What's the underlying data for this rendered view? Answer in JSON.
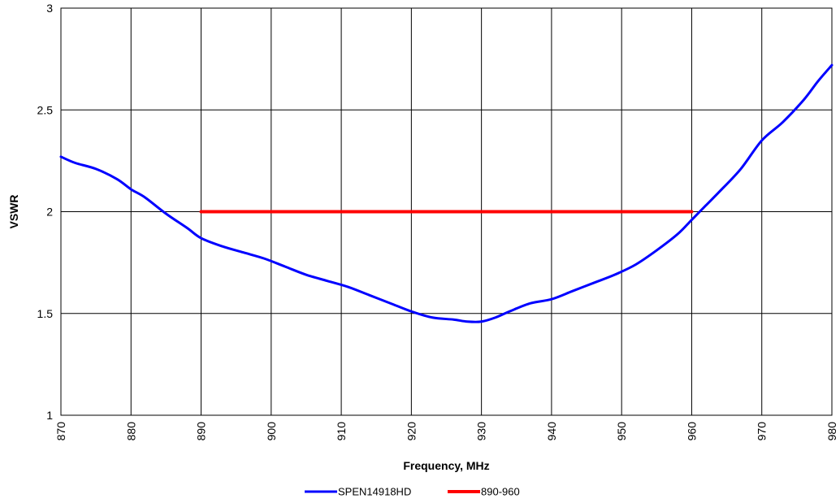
{
  "chart_data": {
    "type": "line",
    "title": "",
    "xlabel": "Frequency, MHz",
    "ylabel": "VSWR",
    "xlim": [
      870,
      980
    ],
    "ylim": [
      1,
      3
    ],
    "x_ticks": [
      "870",
      "880",
      "890",
      "900",
      "910",
      "920",
      "930",
      "940",
      "950",
      "960",
      "970",
      "980"
    ],
    "y_ticks": [
      "1",
      "1.5",
      "2",
      "2.5",
      "3"
    ],
    "grid": true,
    "legend_position": "bottom",
    "series": [
      {
        "name": "SPEN14918HD",
        "color": "#0000ff",
        "x": [
          870,
          872,
          875,
          878,
          880,
          882,
          885,
          888,
          890,
          893,
          896,
          899,
          902,
          905,
          908,
          911,
          914,
          917,
          920,
          923,
          926,
          928,
          930,
          932,
          934,
          937,
          940,
          943,
          946,
          949,
          952,
          955,
          958,
          960,
          962,
          964,
          967,
          970,
          973,
          976,
          978,
          980
        ],
        "y": [
          2.27,
          2.24,
          2.21,
          2.16,
          2.11,
          2.07,
          1.99,
          1.92,
          1.87,
          1.83,
          1.8,
          1.77,
          1.73,
          1.69,
          1.66,
          1.63,
          1.59,
          1.55,
          1.51,
          1.48,
          1.47,
          1.46,
          1.46,
          1.48,
          1.51,
          1.55,
          1.57,
          1.61,
          1.65,
          1.69,
          1.74,
          1.81,
          1.89,
          1.96,
          2.03,
          2.1,
          2.21,
          2.35,
          2.44,
          2.55,
          2.64,
          2.72
        ]
      },
      {
        "name": "890-960",
        "color": "#ff0000",
        "x": [
          890,
          960
        ],
        "y": [
          2,
          2
        ]
      }
    ]
  }
}
